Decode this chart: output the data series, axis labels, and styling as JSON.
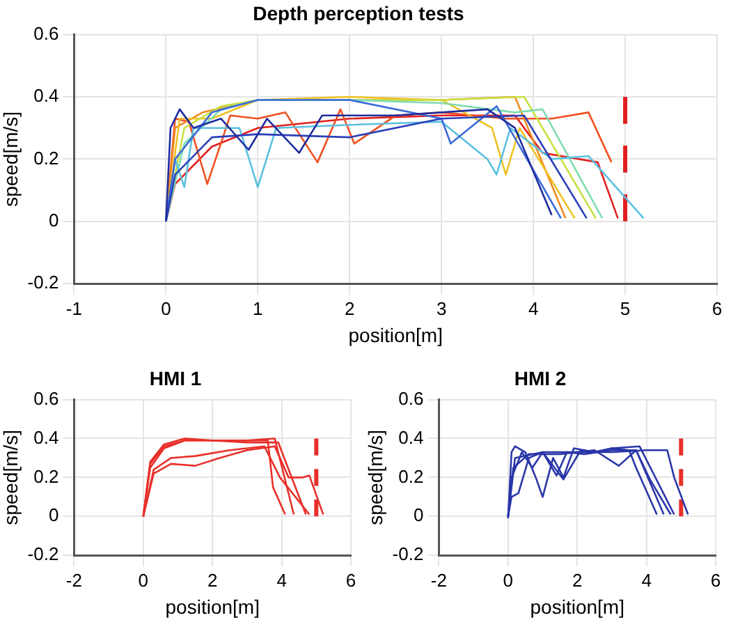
{
  "chart_data": [
    {
      "type": "line",
      "title": "Depth perception tests",
      "xlabel": "position[m]",
      "ylabel": "speed[m/s]",
      "xlim": [
        -1,
        6
      ],
      "ylim": [
        -0.2,
        0.6
      ],
      "xticks": [
        -1,
        0,
        1,
        2,
        3,
        4,
        5,
        6
      ],
      "yticks": [
        -0.2,
        0,
        0.2,
        0.4,
        0.6
      ],
      "grid": true,
      "marker": "none",
      "series": [
        {
          "color": "#1f2d9e",
          "x": [
            0,
            0.05,
            0.15,
            0.3,
            0.6,
            0.9,
            1.1,
            1.45,
            1.7,
            2.5,
            3.5,
            3.8,
            4.2
          ],
          "values": [
            0,
            0.3,
            0.36,
            0.3,
            0.33,
            0.23,
            0.33,
            0.22,
            0.34,
            0.34,
            0.36,
            0.3,
            0.02
          ]
        },
        {
          "color": "#2a3fb8",
          "x": [
            0,
            0.1,
            0.5,
            1,
            2,
            3,
            3.9,
            4.58
          ],
          "values": [
            0,
            0.15,
            0.27,
            0.28,
            0.27,
            0.33,
            0.34,
            0.01
          ]
        },
        {
          "color": "#3a6ad8",
          "x": [
            0,
            0.1,
            0.5,
            1,
            2,
            3,
            3.1,
            3.6,
            4.3
          ],
          "values": [
            0,
            0.2,
            0.35,
            0.39,
            0.39,
            0.33,
            0.25,
            0.37,
            0.01
          ]
        },
        {
          "color": "#5bc0e0",
          "x": [
            0,
            0.1,
            0.2,
            0.3,
            0.8,
            1,
            1.2,
            2,
            3,
            3.5,
            3.6,
            3.75,
            4.2,
            4.6,
            5.2
          ],
          "values": [
            0,
            0.2,
            0.11,
            0.3,
            0.3,
            0.11,
            0.3,
            0.31,
            0.32,
            0.2,
            0.15,
            0.3,
            0.2,
            0.21,
            0.01
          ]
        },
        {
          "color": "#7fdcb0",
          "x": [
            0,
            0.2,
            0.6,
            1,
            2,
            3,
            3.8,
            4.1,
            4.75
          ],
          "values": [
            0,
            0.25,
            0.36,
            0.39,
            0.39,
            0.38,
            0.35,
            0.36,
            0.01
          ]
        },
        {
          "color": "#c8e040",
          "x": [
            0,
            0.2,
            0.6,
            1,
            2,
            3,
            3.9,
            4.68
          ],
          "values": [
            0,
            0.3,
            0.37,
            0.39,
            0.39,
            0.39,
            0.4,
            0.01
          ]
        },
        {
          "color": "#f0c020",
          "x": [
            0,
            0.15,
            0.5,
            1,
            2,
            3,
            3.55,
            3.7,
            3.85,
            4.45
          ],
          "values": [
            0,
            0.33,
            0.33,
            0.39,
            0.4,
            0.39,
            0.3,
            0.15,
            0.3,
            0.01
          ]
        },
        {
          "color": "#f08a20",
          "x": [
            0,
            0.1,
            0.4,
            1,
            2,
            3,
            3.8,
            4.35
          ],
          "values": [
            0,
            0.3,
            0.35,
            0.39,
            0.39,
            0.39,
            0.4,
            0.01
          ]
        },
        {
          "color": "#f05020",
          "x": [
            0,
            0.1,
            0.25,
            0.45,
            0.7,
            1,
            1.3,
            1.65,
            1.9,
            2.05,
            2.5,
            3,
            3.7,
            4.2,
            4.6,
            4.85
          ],
          "values": [
            0,
            0.33,
            0.32,
            0.12,
            0.34,
            0.33,
            0.35,
            0.19,
            0.36,
            0.25,
            0.34,
            0.35,
            0.33,
            0.33,
            0.35,
            0.19
          ]
        },
        {
          "color": "#e02020",
          "x": [
            0,
            0.1,
            0.5,
            1,
            2,
            3,
            3.8,
            4.1,
            4.7,
            4.92
          ],
          "values": [
            0,
            0.12,
            0.24,
            0.3,
            0.33,
            0.34,
            0.34,
            0.22,
            0.19,
            0.01
          ]
        },
        {
          "color": "#e02020",
          "type": "line",
          "line_style": "dashed",
          "x": [
            5,
            5
          ],
          "values": [
            0,
            0.4
          ]
        }
      ]
    },
    {
      "type": "line",
      "title": "HMI 1",
      "xlabel": "position[m]",
      "ylabel": "speed[m/s]",
      "xlim": [
        -2,
        6
      ],
      "ylim": [
        -0.2,
        0.6
      ],
      "xticks": [
        -2,
        0,
        2,
        4,
        6
      ],
      "yticks": [
        -0.2,
        0,
        0.2,
        0.4,
        0.6
      ],
      "grid": true,
      "marker": "none",
      "series": [
        {
          "color": "#e8302a",
          "x": [
            0,
            0.2,
            0.6,
            1.2,
            2,
            3,
            3.8,
            4.35
          ],
          "values": [
            0,
            0.25,
            0.35,
            0.39,
            0.39,
            0.39,
            0.4,
            0.01
          ]
        },
        {
          "color": "#e8302a",
          "x": [
            0,
            0.2,
            0.6,
            1.2,
            2,
            3,
            3.6,
            3.75,
            4.1
          ],
          "values": [
            0,
            0.27,
            0.36,
            0.39,
            0.39,
            0.39,
            0.39,
            0.15,
            0.01
          ]
        },
        {
          "color": "#e8302a",
          "x": [
            0,
            0.3,
            0.8,
            1.5,
            2.5,
            3.5,
            3.95,
            4.8
          ],
          "values": [
            0,
            0.24,
            0.3,
            0.31,
            0.34,
            0.36,
            0.2,
            0.01
          ]
        },
        {
          "color": "#e8302a",
          "x": [
            0,
            0.3,
            0.8,
            1.5,
            2.2,
            3,
            3.8,
            4.2,
            4.6,
            4.8,
            5.2
          ],
          "values": [
            0,
            0.22,
            0.27,
            0.26,
            0.3,
            0.34,
            0.36,
            0.2,
            0.2,
            0.21,
            0.01
          ]
        },
        {
          "color": "#e8302a",
          "x": [
            0,
            0.2,
            0.6,
            1.2,
            2,
            3,
            3.9,
            4.7
          ],
          "values": [
            0,
            0.28,
            0.37,
            0.4,
            0.39,
            0.38,
            0.38,
            0.01
          ]
        },
        {
          "color": "#e8302a",
          "type": "line",
          "line_style": "dashed",
          "x": [
            5,
            5
          ],
          "values": [
            0,
            0.4
          ]
        }
      ]
    },
    {
      "type": "line",
      "title": "HMI 2",
      "xlabel": "position[m]",
      "ylabel": "speed[m/s]",
      "xlim": [
        -2,
        6
      ],
      "ylim": [
        -0.2,
        0.6
      ],
      "xticks": [
        -2,
        0,
        2,
        4,
        6
      ],
      "yticks": [
        -0.2,
        0,
        0.2,
        0.4,
        0.6
      ],
      "grid": true,
      "marker": "none",
      "series": [
        {
          "color": "#2a36a8",
          "x": [
            0,
            0.1,
            0.2,
            0.5,
            0.8,
            1,
            1.3,
            1.6,
            1.9,
            2.5,
            3,
            3.5,
            3.7,
            4.3
          ],
          "values": [
            -0.01,
            0.33,
            0.36,
            0.33,
            0.2,
            0.1,
            0.3,
            0.2,
            0.35,
            0.33,
            0.35,
            0.34,
            0.25,
            0.01
          ]
        },
        {
          "color": "#2a36a8",
          "x": [
            0,
            0.1,
            0.3,
            0.6,
            1,
            1.4,
            1.7,
            2.2,
            3,
            3.7,
            4.5
          ],
          "values": [
            0,
            0.1,
            0.12,
            0.3,
            0.33,
            0.21,
            0.33,
            0.32,
            0.34,
            0.34,
            0.01
          ]
        },
        {
          "color": "#2a36a8",
          "x": [
            0,
            0.1,
            0.4,
            0.7,
            1,
            1.6,
            2.1,
            2.5,
            3,
            3.8,
            4.8
          ],
          "values": [
            0,
            0.2,
            0.33,
            0.25,
            0.33,
            0.19,
            0.34,
            0.33,
            0.35,
            0.36,
            0.01
          ]
        },
        {
          "color": "#2a36a8",
          "x": [
            0,
            0.15,
            0.6,
            1.5,
            2.5,
            3.2,
            3.7,
            4.1,
            4.7
          ],
          "values": [
            0,
            0.25,
            0.32,
            0.32,
            0.34,
            0.26,
            0.34,
            0.19,
            0.01
          ]
        },
        {
          "color": "#2a36a8",
          "x": [
            0,
            0.2,
            1,
            2,
            3,
            4,
            4.6,
            4.8,
            5.2
          ],
          "values": [
            0,
            0.3,
            0.33,
            0.33,
            0.33,
            0.34,
            0.34,
            0.2,
            0.01
          ]
        },
        {
          "color": "#e8302a",
          "type": "line",
          "line_style": "dashed",
          "x": [
            5,
            5
          ],
          "values": [
            0,
            0.4
          ]
        }
      ]
    }
  ]
}
